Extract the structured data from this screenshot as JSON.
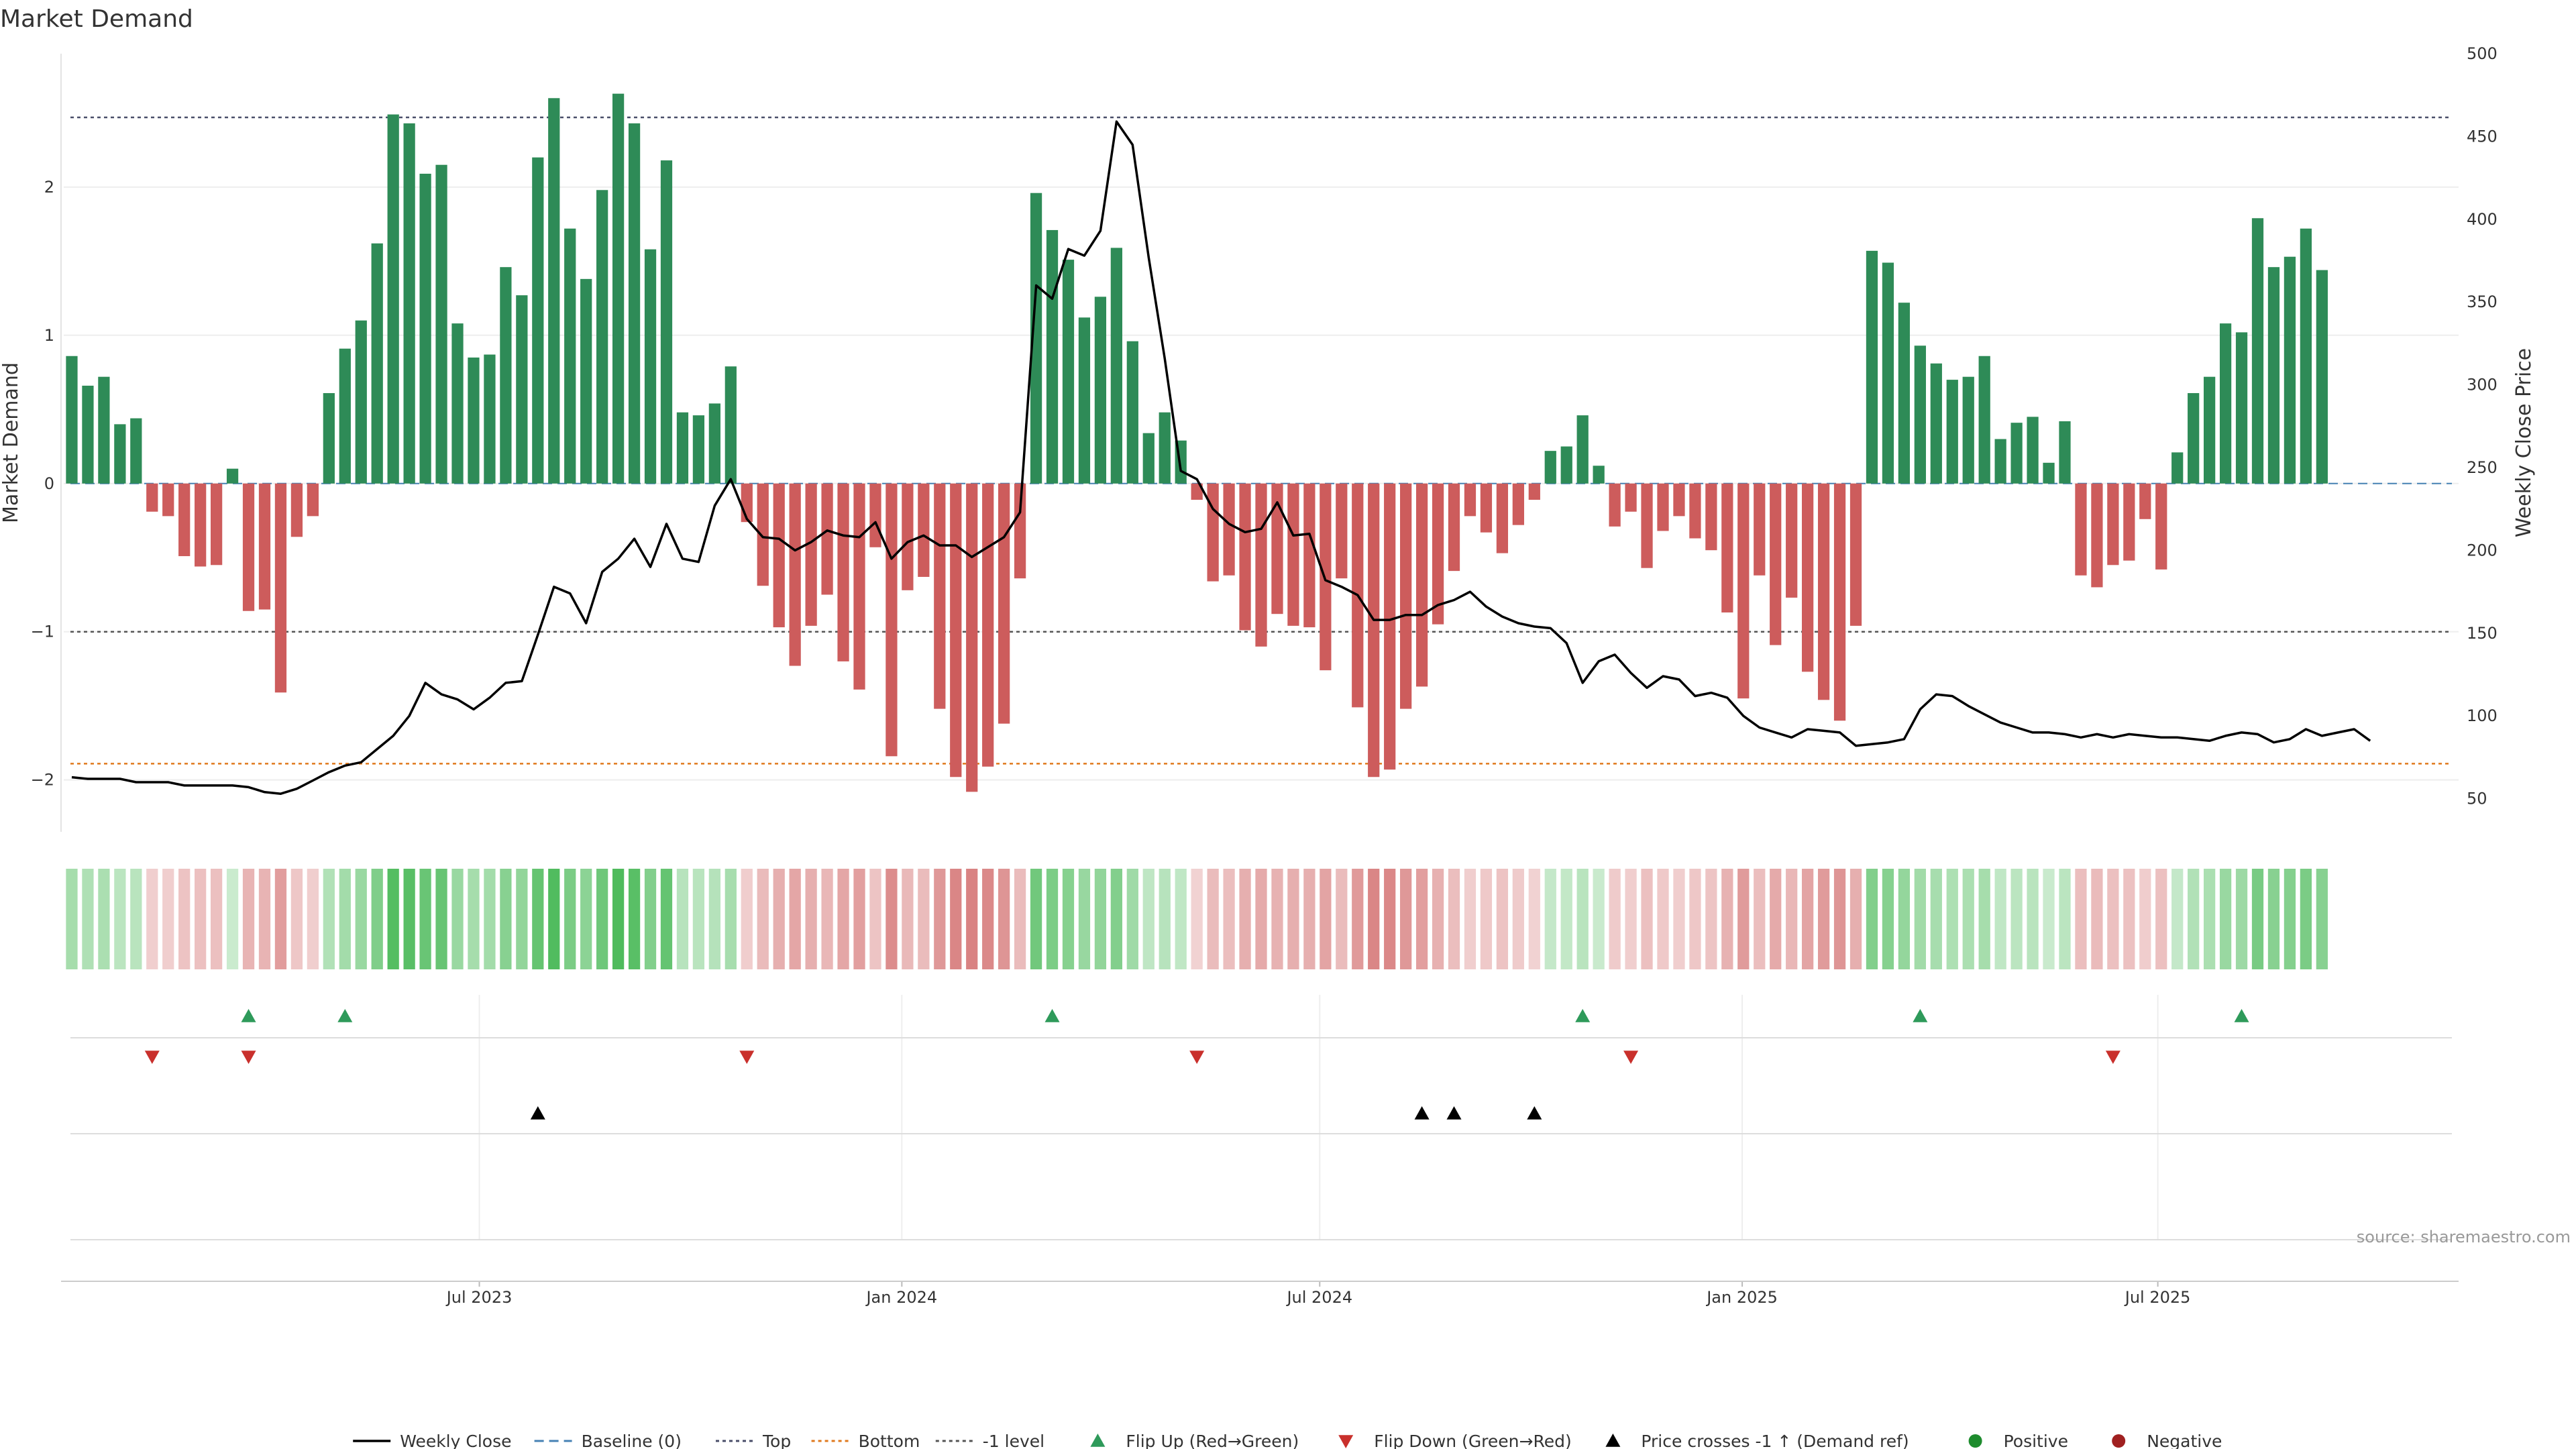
{
  "chart_data": {
    "type": "bar",
    "title": "Market Demand",
    "ylabel": "Market Demand",
    "ylabel_right": "Weekly Close Price",
    "ylim": [
      -2.35,
      2.9
    ],
    "ylim_right": [
      30,
      500
    ],
    "yticks": [
      -2,
      -1,
      0,
      1,
      2
    ],
    "yticks_right": [
      50,
      100,
      150,
      200,
      250,
      300,
      350,
      400,
      450,
      500
    ],
    "x_range": [
      "2023-01-01",
      "2025-11-09"
    ],
    "xticks": [
      {
        "date": "2023-07-01",
        "label": "Jul 2023"
      },
      {
        "date": "2024-01-01",
        "label": "Jan 2024"
      },
      {
        "date": "2024-07-01",
        "label": "Jul 2024"
      },
      {
        "date": "2025-01-01",
        "label": "Jan 2025"
      },
      {
        "date": "2025-07-01",
        "label": "Jul 2025"
      }
    ],
    "reference_lines": {
      "top": 2.47,
      "bottom": -1.89,
      "minus_one": -1,
      "baseline": 0
    },
    "start_date": "2023-01-01",
    "week_step_days": 7,
    "demand": [
      0.86,
      0.66,
      0.72,
      0.4,
      0.44,
      -0.19,
      -0.22,
      -0.49,
      -0.56,
      -0.55,
      0.1,
      -0.86,
      -0.85,
      -1.41,
      -0.36,
      -0.22,
      0.61,
      0.91,
      1.1,
      1.62,
      2.49,
      2.43,
      2.09,
      2.15,
      1.08,
      0.85,
      0.87,
      1.46,
      1.27,
      2.2,
      2.6,
      1.72,
      1.38,
      1.98,
      2.63,
      2.43,
      1.58,
      2.18,
      0.48,
      0.46,
      0.54,
      0.79,
      -0.26,
      -0.69,
      -0.97,
      -1.23,
      -0.96,
      -0.75,
      -1.2,
      -1.39,
      -0.43,
      -1.84,
      -0.72,
      -0.63,
      -1.52,
      -1.98,
      -2.08,
      -1.91,
      -1.62,
      -0.64,
      1.96,
      1.71,
      1.51,
      1.12,
      1.26,
      1.59,
      0.96,
      0.34,
      0.48,
      0.29,
      -0.11,
      -0.66,
      -0.62,
      -0.99,
      -1.1,
      -0.88,
      -0.96,
      -0.97,
      -1.26,
      -0.64,
      -1.51,
      -1.98,
      -1.93,
      -1.52,
      -1.37,
      -0.95,
      -0.59,
      -0.22,
      -0.33,
      -0.47,
      -0.28,
      -0.11,
      0.22,
      0.25,
      0.46,
      0.12,
      -0.29,
      -0.19,
      -0.57,
      -0.32,
      -0.22,
      -0.37,
      -0.45,
      -0.87,
      -1.45,
      -0.62,
      -1.09,
      -0.77,
      -1.27,
      -1.46,
      -1.6,
      -0.96,
      1.57,
      1.49,
      1.22,
      0.93,
      0.81,
      0.7,
      0.72,
      0.86,
      0.3,
      0.41,
      0.45,
      0.14,
      0.42,
      -0.62,
      -0.7,
      -0.55,
      -0.52,
      -0.24,
      -0.58,
      0.21,
      0.61,
      0.72,
      1.08,
      1.02,
      1.79,
      1.46,
      1.53,
      1.72,
      1.44
    ],
    "price": [
      63,
      62,
      62,
      62,
      60,
      60,
      60,
      58,
      58,
      58,
      58,
      57,
      54,
      53,
      56,
      61,
      66,
      70,
      72,
      80,
      88,
      100,
      120,
      113,
      110,
      104,
      111,
      120,
      121,
      149,
      178,
      174,
      156,
      187,
      195,
      207,
      190,
      216,
      195,
      193,
      227,
      243,
      219,
      208,
      207,
      200,
      205,
      212,
      209,
      208,
      217,
      195,
      205,
      209,
      203,
      203,
      196,
      202,
      208,
      223,
      360,
      352,
      382,
      378,
      393,
      459,
      445,
      377,
      316,
      248,
      243,
      225,
      216,
      211,
      213,
      229,
      209,
      210,
      182,
      178,
      173,
      158,
      158,
      161,
      161,
      167,
      170,
      175,
      166,
      160,
      156,
      154,
      153,
      144,
      120,
      133,
      137,
      126,
      117,
      124,
      122,
      112,
      114,
      111,
      100,
      93,
      90,
      87,
      92,
      91,
      90,
      82,
      83,
      84,
      86,
      104,
      113,
      112,
      106,
      101,
      96,
      93,
      90,
      90,
      89,
      87,
      89,
      87,
      89,
      88,
      87,
      87,
      86,
      85,
      88,
      90,
      89,
      84,
      86,
      92,
      88,
      90,
      92,
      85
    ],
    "series": [
      {
        "name": "Weekly Close",
        "values_key": "price",
        "color": "#000000"
      },
      {
        "name": "Market Demand",
        "values_key": "demand",
        "positive_color": "#2e8b57",
        "negative_color": "#cd5c5c"
      }
    ],
    "flip_up_weeks": [
      11,
      17,
      61,
      94,
      115,
      135
    ],
    "flip_down_weeks": [
      5,
      11,
      42,
      70,
      97,
      127
    ],
    "price_cross_weeks": [
      29,
      84,
      86,
      91
    ],
    "legend": [
      {
        "label": "Weekly Close",
        "marker": "line",
        "color": "#000000"
      },
      {
        "label": "Baseline (0)",
        "marker": "dash",
        "color": "#4682b4"
      },
      {
        "label": "Top",
        "marker": "dot",
        "color": "#4a4e69"
      },
      {
        "label": "Bottom",
        "marker": "dot",
        "color": "#e07a1f"
      },
      {
        "label": "-1 level",
        "marker": "dot",
        "color": "#555555"
      },
      {
        "label": "Flip Up (Red→Green)",
        "marker": "triangle-up",
        "color": "#2e9a5a"
      },
      {
        "label": "Flip Down (Green→Red)",
        "marker": "triangle-down",
        "color": "#c9302c"
      },
      {
        "label": "Price crosses -1 ↑ (Demand ref)",
        "marker": "triangle-up",
        "color": "#000000"
      },
      {
        "label": "Positive",
        "marker": "circle",
        "color": "#1e8c2e"
      },
      {
        "label": "Negative",
        "marker": "circle",
        "color": "#a02020"
      }
    ],
    "legend_position": "bottom-center",
    "source": "source: sharemaestro.com",
    "colors": {
      "positive": "#2e8b57",
      "negative": "#cd5c5c",
      "heat_positive": "#3cb44b",
      "heat_negative": "#cd5c5c"
    }
  }
}
